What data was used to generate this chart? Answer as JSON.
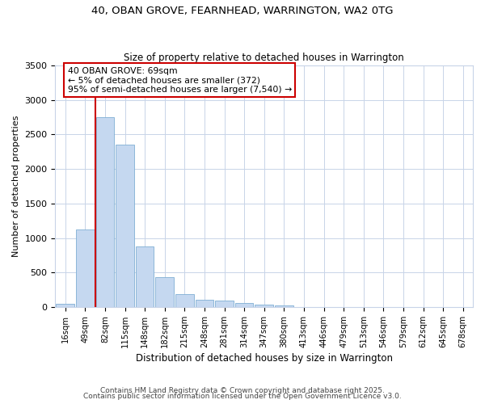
{
  "title1": "40, OBAN GROVE, FEARNHEAD, WARRINGTON, WA2 0TG",
  "title2": "Size of property relative to detached houses in Warrington",
  "xlabel": "Distribution of detached houses by size in Warrington",
  "ylabel": "Number of detached properties",
  "bar_labels": [
    "16sqm",
    "49sqm",
    "82sqm",
    "115sqm",
    "148sqm",
    "182sqm",
    "215sqm",
    "248sqm",
    "281sqm",
    "314sqm",
    "347sqm",
    "380sqm",
    "413sqm",
    "446sqm",
    "479sqm",
    "513sqm",
    "546sqm",
    "579sqm",
    "612sqm",
    "645sqm",
    "678sqm"
  ],
  "bar_values": [
    50,
    1120,
    2750,
    2350,
    880,
    430,
    190,
    110,
    90,
    55,
    30,
    20,
    5,
    0,
    0,
    0,
    0,
    0,
    0,
    0,
    0
  ],
  "bar_color": "#c5d8f0",
  "bar_edge_color": "#7fafd4",
  "subject_label": "40 OBAN GROVE: 69sqm",
  "annotation_line1": "← 5% of detached houses are smaller (372)",
  "annotation_line2": "95% of semi-detached houses are larger (7,540) →",
  "vline_color": "#cc0000",
  "ylim": [
    0,
    3500
  ],
  "yticks": [
    0,
    500,
    1000,
    1500,
    2000,
    2500,
    3000,
    3500
  ],
  "footer1": "Contains HM Land Registry data © Crown copyright and database right 2025.",
  "footer2": "Contains public sector information licensed under the Open Government Licence v3.0.",
  "bg_color": "#ffffff",
  "plot_bg_color": "#ffffff",
  "grid_color": "#c8d4e8"
}
